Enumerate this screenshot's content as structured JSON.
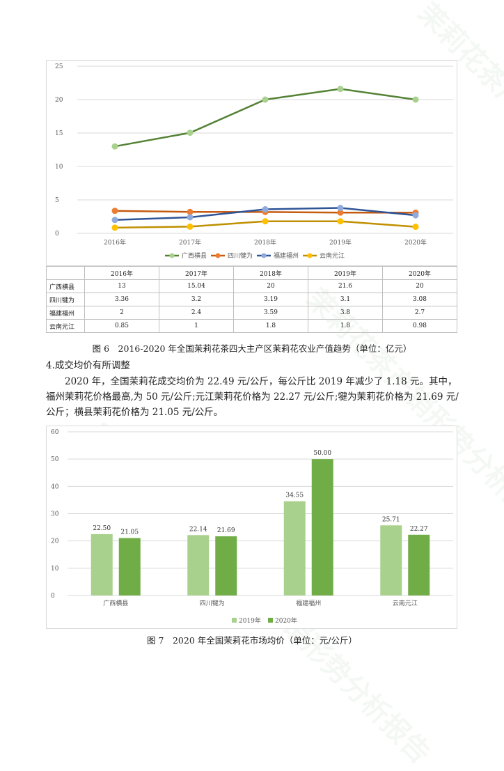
{
  "chart1": {
    "type": "line",
    "categories": [
      "2016年",
      "2017年",
      "2018年",
      "2019年",
      "2020年"
    ],
    "ylim": [
      0,
      25
    ],
    "yticks": [
      0,
      5,
      10,
      15,
      20,
      25
    ],
    "series": [
      {
        "name": "广西横县",
        "color": "#548235",
        "marker": "#a9d18e",
        "values": [
          13,
          15.04,
          20,
          21.6,
          20
        ]
      },
      {
        "name": "四川犍为",
        "color": "#c55a11",
        "marker": "#ed7d31",
        "values": [
          3.36,
          3.2,
          3.19,
          3.1,
          3.08
        ]
      },
      {
        "name": "福建福州",
        "color": "#2f5597",
        "marker": "#8faadc",
        "values": [
          2,
          2.4,
          3.59,
          3.8,
          2.7
        ]
      },
      {
        "name": "云南元江",
        "color": "#bf9000",
        "marker": "#ffc000",
        "values": [
          0.85,
          1,
          1.8,
          1.8,
          0.98
        ]
      }
    ]
  },
  "table1": {
    "columns": [
      "2016年",
      "2017年",
      "2018年",
      "2019年",
      "2020年"
    ],
    "rows": [
      {
        "label": "广西横县",
        "cells": [
          "13",
          "15.04",
          "20",
          "21.6",
          "20"
        ]
      },
      {
        "label": "四川犍为",
        "cells": [
          "3.36",
          "3.2",
          "3.19",
          "3.1",
          "3.08"
        ]
      },
      {
        "label": "福建福州",
        "cells": [
          "2",
          "2.4",
          "3.59",
          "3.8",
          "2.7"
        ]
      },
      {
        "label": "云南元江",
        "cells": [
          "0.85",
          "1",
          "1.8",
          "1.8",
          "0.98"
        ]
      }
    ]
  },
  "caption1": "图 6　2016-2020 年全国茉莉花茶四大主产区茉莉花农业产值趋势（单位：亿元）",
  "section_heading": "4.成交均价有所调整",
  "paragraph": "2020 年，全国茉莉花成交均价为 22.49 元/公斤，每公斤比 2019 年减少了 1.18 元。其中，福州茉莉花价格最高,为 50 元/公斤;元江茉莉花价格为 22.27 元/公斤;犍为茉莉花价格为 21.69 元/公斤；横县茉莉花价格为 21.05 元/公斤。",
  "chart2": {
    "type": "bar",
    "categories": [
      "广西横县",
      "四川犍为",
      "福建福州",
      "云南元江"
    ],
    "ylim": [
      0,
      60
    ],
    "yticks": [
      0,
      10,
      20,
      30,
      40,
      50,
      60
    ],
    "series": [
      {
        "name": "2019年",
        "color": "#a9d18e",
        "values": [
          22.5,
          22.14,
          34.55,
          25.71
        ],
        "labels": [
          "22.50",
          "22.14",
          "34.55",
          "25.71"
        ]
      },
      {
        "name": "2020年",
        "color": "#70ad47",
        "values": [
          21.05,
          21.69,
          50.0,
          22.27
        ],
        "labels": [
          "21.05",
          "21.69",
          "50.00",
          "22.27"
        ]
      }
    ]
  },
  "caption2": "图 7　2020 年全国茉莉花市场均价（单位：元/公斤）",
  "watermark_texts": [
    "茉莉花茶产销形势分析报告",
    "2021中国茉莉花茶产销形势分析报告"
  ]
}
